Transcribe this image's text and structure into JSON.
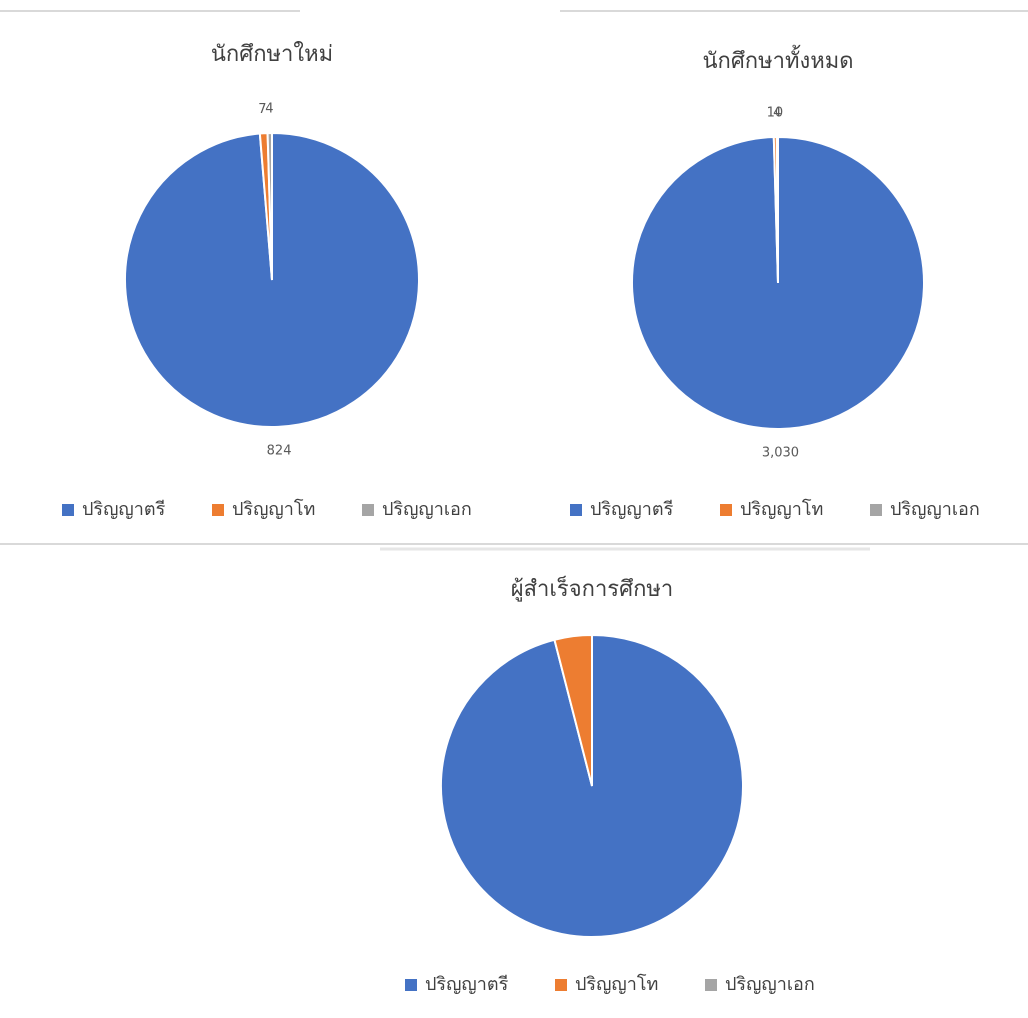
{
  "chart_data": [
    {
      "type": "pie",
      "title": "นักศึกษาใหม่",
      "categories": [
        "ปริญญาตรี",
        "ปริญญาโท",
        "ปริญญาเอก"
      ],
      "values": [
        824,
        7,
        4
      ],
      "colors": [
        "#4472c4",
        "#ed7d31",
        "#a5a5a5"
      ],
      "data_labels": true,
      "legend": "bottom"
    },
    {
      "type": "pie",
      "title": "นักศึกษาทั้งหมด",
      "categories": [
        "ปริญญาตรี",
        "ปริญญาโท",
        "ปริญญาเอก"
      ],
      "values": [
        3030,
        10,
        4
      ],
      "value_labels": [
        "3,030",
        "10",
        "4"
      ],
      "colors": [
        "#4472c4",
        "#ed7d31",
        "#a5a5a5"
      ],
      "data_labels": true,
      "legend": "bottom"
    },
    {
      "type": "pie",
      "title": "ผู้สำเร็จการศึกษา",
      "categories": [
        "ปริญญาตรี",
        "ปริญญาโท",
        "ปริญญาเอก"
      ],
      "values": [
        96,
        4,
        0
      ],
      "colors": [
        "#4472c4",
        "#ed7d31",
        "#a5a5a5"
      ],
      "data_labels": false,
      "legend": "bottom"
    }
  ]
}
